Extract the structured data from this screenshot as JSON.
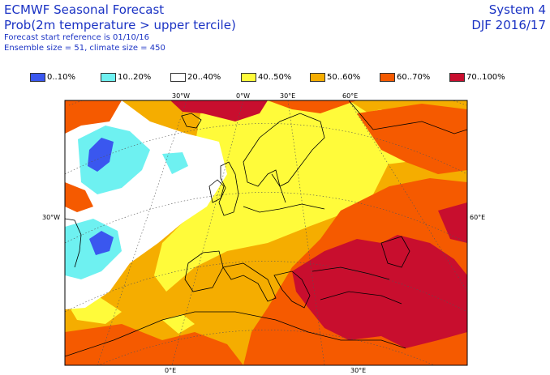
{
  "header": {
    "title": "ECMWF Seasonal Forecast",
    "subtitle": "Prob(2m temperature > upper tercile)",
    "start_reference": "Forecast start reference is 01/10/16",
    "ensemble": "Ensemble size = 51, climate size = 450",
    "system": "System 4",
    "season": "DJF 2016/17"
  },
  "legend": [
    {
      "label": "0..10%",
      "color": "#3a57ef"
    },
    {
      "label": "10..20%",
      "color": "#6ef1f1"
    },
    {
      "label": "20..40%",
      "color": "#ffffff"
    },
    {
      "label": "40..50%",
      "color": "#fffb3a"
    },
    {
      "label": "50..60%",
      "color": "#f5ad00"
    },
    {
      "label": "60..70%",
      "color": "#f55a00"
    },
    {
      "label": "70..100%",
      "color": "#c80e2e"
    }
  ],
  "map_labels": {
    "top_30w": "30°W",
    "top_0w": "0°W",
    "top_30e": "30°E",
    "top_60e": "60°E",
    "left_30w": "30°W",
    "right_60e": "60°E",
    "bottom_0e": "0°E",
    "bottom_30e": "30°E"
  }
}
